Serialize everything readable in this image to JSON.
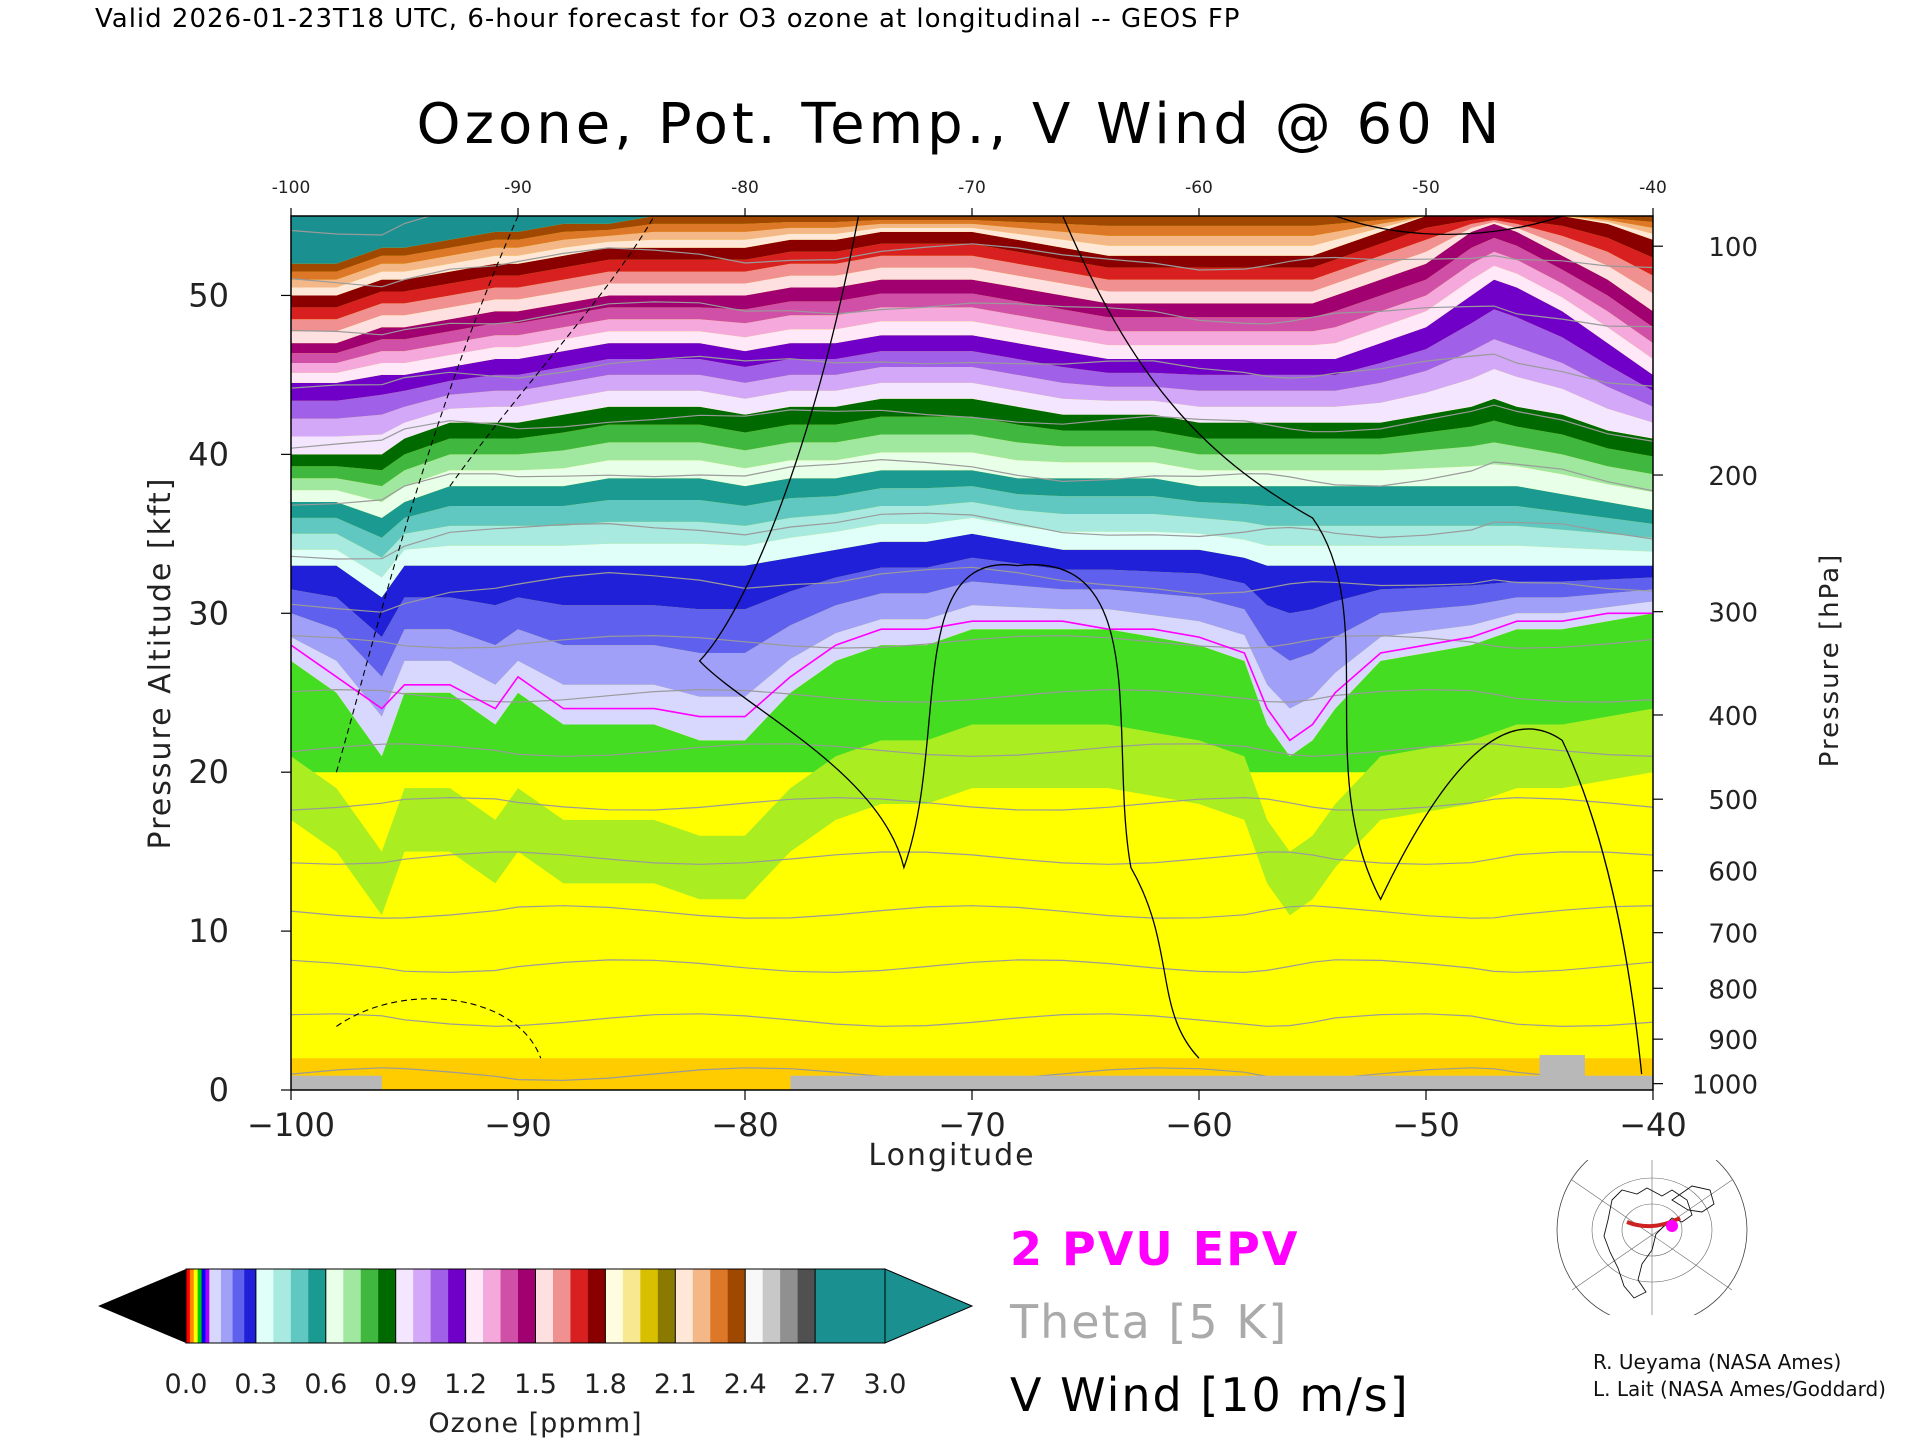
{
  "header": {
    "valid_line": "Valid 2026-01-23T18 UTC, 6-hour forecast for O3 ozone at longitudinal -- GEOS FP"
  },
  "chart_data": {
    "type": "heatmap",
    "title": "Ozone, Pot. Temp., V Wind @ 60 N",
    "xlabel": "Longitude",
    "ylabel": "Pressure Altitude [kft]",
    "ylabel_right": "Pressure [hPa]",
    "xlim": [
      -100,
      -40
    ],
    "ylim": [
      0,
      55
    ],
    "x_ticks": [
      -100,
      -90,
      -80,
      -70,
      -60,
      -50,
      -40
    ],
    "x_tick_labels": [
      "−100",
      "−90",
      "−80",
      "−70",
      "−60",
      "−50",
      "−40"
    ],
    "x_top_tick_labels": [
      "-100",
      "-90",
      "-80",
      "-70",
      "-60",
      "-50",
      "-40"
    ],
    "y_ticks": [
      0,
      10,
      20,
      30,
      40,
      50
    ],
    "y_tick_labels": [
      "0",
      "10",
      "20",
      "30",
      "40",
      "50"
    ],
    "pressure_ticks": [
      {
        "hpa": 100,
        "label": "100",
        "kft": 53.1
      },
      {
        "hpa": 200,
        "label": "200",
        "kft": 38.7
      },
      {
        "hpa": 300,
        "label": "300",
        "kft": 30.1
      },
      {
        "hpa": 400,
        "label": "400",
        "kft": 23.6
      },
      {
        "hpa": 500,
        "label": "500",
        "kft": 18.3
      },
      {
        "hpa": 600,
        "label": "600",
        "kft": 13.8
      },
      {
        "hpa": 700,
        "label": "700",
        "kft": 9.9
      },
      {
        "hpa": 800,
        "label": "800",
        "kft": 6.4
      },
      {
        "hpa": 900,
        "label": "900",
        "kft": 3.2
      },
      {
        "hpa": 1000,
        "label": "1000",
        "kft": 0.4
      }
    ],
    "ozone_colorbar": {
      "label": "Ozone [ppmm]",
      "range": [
        0.0,
        3.0
      ],
      "tick_values": [
        0.0,
        0.3,
        0.6,
        0.9,
        1.2,
        1.5,
        1.8,
        2.1,
        2.4,
        2.7,
        3.0
      ],
      "tick_labels": [
        "0.0",
        "0.3",
        "0.6",
        "0.9",
        "1.2",
        "1.5",
        "1.8",
        "2.1",
        "2.4",
        "2.7",
        "3.0"
      ],
      "under_color": "#000000",
      "over_color": "#1a9090",
      "bands": [
        {
          "from": 0.0,
          "to": 0.1,
          "colors": [
            "#ff0000",
            "#ff8800",
            "#ffff00",
            "#00cc00",
            "#0000ff",
            "#aa00ff"
          ]
        },
        {
          "from": 0.1,
          "to": 0.3,
          "colors": [
            "#d8d8ff",
            "#a0a0f8",
            "#6060ee",
            "#2020d8"
          ]
        },
        {
          "from": 0.3,
          "to": 0.6,
          "colors": [
            "#e0fff8",
            "#a8eae0",
            "#60c8c0",
            "#1a9a90"
          ]
        },
        {
          "from": 0.6,
          "to": 0.9,
          "colors": [
            "#e8ffe8",
            "#a0e8a0",
            "#40b840",
            "#006a00"
          ]
        },
        {
          "from": 0.9,
          "to": 1.2,
          "colors": [
            "#f4e6ff",
            "#d4a8f8",
            "#a060e8",
            "#7000c8"
          ]
        },
        {
          "from": 1.2,
          "to": 1.5,
          "colors": [
            "#ffe8f8",
            "#f4a8dc",
            "#d050a8",
            "#a00070"
          ]
        },
        {
          "from": 1.5,
          "to": 1.8,
          "colors": [
            "#ffe0e0",
            "#f09090",
            "#d82020",
            "#8a0000"
          ]
        },
        {
          "from": 1.8,
          "to": 2.1,
          "colors": [
            "#fffce0",
            "#f8e890",
            "#d8c000",
            "#8a7a00"
          ]
        },
        {
          "from": 2.1,
          "to": 2.4,
          "colors": [
            "#ffe8d8",
            "#f4b888",
            "#dc7828",
            "#a04800"
          ]
        },
        {
          "from": 2.4,
          "to": 2.7,
          "colors": [
            "#f8f8f8",
            "#c8c8c8",
            "#909090",
            "#505050"
          ]
        },
        {
          "from": 2.7,
          "to": 3.0,
          "colors": [
            "#1a9090"
          ]
        }
      ]
    },
    "ozone_layers": {
      "x": [
        -100,
        -98,
        -96,
        -95,
        -93,
        -91,
        -90,
        -88,
        -86,
        -84,
        -82,
        -80,
        -78,
        -76,
        -74,
        -72,
        -70,
        -68,
        -66,
        -64,
        -62,
        -60,
        -58,
        -57,
        -56,
        -55,
        -54,
        -52,
        -50,
        -48,
        -47,
        -46,
        -44,
        -42,
        -40
      ],
      "troposphere_top_kft": [
        27,
        25,
        21,
        25,
        25,
        23,
        25,
        23,
        23,
        23,
        22,
        22,
        25,
        27,
        28,
        28,
        29,
        29,
        29,
        29,
        28.5,
        28,
        27,
        23,
        21,
        22,
        24,
        27,
        27.5,
        28,
        28.5,
        29,
        29,
        29.5,
        30
      ],
      "dark_blue_top_kft": [
        33,
        33,
        31,
        33,
        33,
        33,
        33,
        33,
        33,
        33,
        33,
        33,
        33.5,
        34,
        34.5,
        34.5,
        35,
        34.5,
        34,
        34,
        34,
        34,
        33.5,
        33,
        33,
        33,
        33,
        33,
        33,
        33,
        33,
        33,
        33,
        33,
        33
      ],
      "teal_top_kft": [
        37,
        37,
        36,
        37,
        38,
        38,
        38,
        38,
        38.5,
        38.5,
        38.5,
        38,
        38.5,
        38.5,
        39,
        39,
        39,
        38.5,
        38.5,
        38.5,
        38.5,
        38,
        38,
        38,
        38,
        38,
        38,
        38,
        38,
        38,
        38,
        38,
        37.5,
        37,
        36.5
      ],
      "green_top_kft": [
        40,
        40,
        40,
        41,
        42,
        42,
        42,
        42.5,
        43,
        43,
        43,
        42.5,
        43,
        43,
        43.5,
        43.5,
        43.5,
        43,
        42.5,
        42.5,
        42.5,
        42,
        42,
        42,
        42,
        42,
        42,
        42,
        42.5,
        43,
        43.5,
        43,
        42.5,
        41.5,
        41
      ],
      "purple_top_kft": [
        44.5,
        44.5,
        45,
        45,
        45.5,
        46,
        46,
        46.5,
        47,
        47,
        47,
        46.5,
        47,
        47,
        47.5,
        47.5,
        47.5,
        47,
        46.5,
        46,
        46,
        46,
        46,
        46,
        46,
        46,
        46,
        47,
        48,
        50,
        51,
        50.5,
        49,
        47,
        45
      ],
      "red_top_kft": [
        47,
        47,
        48,
        48,
        48.5,
        49,
        49,
        49.5,
        50,
        50,
        50,
        50,
        50.5,
        50.5,
        51,
        51,
        51,
        50.5,
        50,
        49.5,
        49.5,
        49.5,
        49.5,
        49.5,
        49.5,
        49.5,
        50,
        51,
        52,
        54,
        54.5,
        54,
        52.5,
        51,
        49
      ],
      "orange_top_kft": [
        50,
        50,
        51,
        51,
        51.5,
        52,
        52,
        52.5,
        53,
        53,
        53,
        53,
        53.5,
        53.5,
        54,
        54,
        54,
        53.5,
        53,
        52.5,
        52.5,
        52.5,
        52.5,
        52.5,
        52.5,
        52.5,
        53,
        54,
        55,
        55,
        55,
        55,
        55,
        54.5,
        53.5
      ],
      "white_top_kft": [
        52,
        52,
        53,
        53,
        53.5,
        54,
        54,
        54.5,
        54.5,
        55,
        55,
        55,
        55,
        55,
        55,
        55,
        55,
        55,
        55,
        55,
        55,
        55,
        55,
        55,
        55,
        55,
        55,
        55,
        55,
        55,
        55,
        55,
        55,
        55,
        55
      ]
    },
    "overlays": {
      "epv_2pvu_kft": [
        28,
        26,
        24,
        25.5,
        25.5,
        24,
        26,
        24,
        24,
        24,
        23.5,
        23.5,
        26,
        28,
        29,
        29,
        29.5,
        29.5,
        29.5,
        29,
        29,
        28.5,
        27.5,
        24,
        22,
        23,
        25,
        27.5,
        28,
        28.5,
        29,
        29.5,
        29.5,
        30,
        30
      ],
      "theta_levels_K": [
        250,
        260,
        270,
        280,
        290,
        300,
        310,
        320,
        330,
        340,
        350,
        360,
        370,
        380,
        390,
        400,
        410
      ]
    }
  },
  "legend": {
    "epv": "2 PVU EPV",
    "theta": "Theta [5 K]",
    "vwind": "V Wind [10 m/s]"
  },
  "credits": {
    "line1": "R. Ueyama (NASA Ames)",
    "line2": "L. Lait (NASA Ames/Goddard)"
  },
  "colors": {
    "epv_line": "#ff00ff",
    "theta_line": "#9a9a9a",
    "vwind_line": "#000000",
    "terrain": "#b8b8b8",
    "map_track": "#cc2222",
    "map_point": "#ff00ff"
  }
}
